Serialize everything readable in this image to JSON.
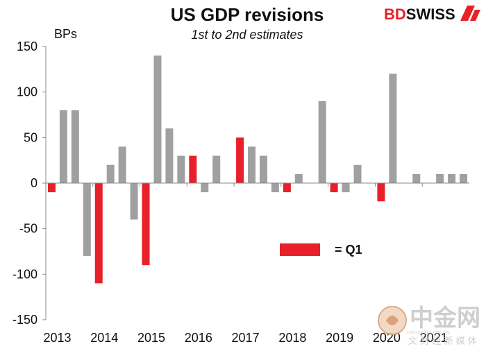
{
  "brand": {
    "part1": "BD",
    "part2": "SWISS",
    "color1": "#e8202a",
    "color2": "#111111"
  },
  "watermark": {
    "main": "中金网",
    "sub": "文 财 经 新 媒 体",
    "small": "CNGOLD.COM.CN"
  },
  "chart_data": {
    "type": "bar",
    "title": "US GDP revisions",
    "subtitle": "1st to 2nd estimates",
    "ylabel": "BPs",
    "ylim": [
      -150,
      150
    ],
    "yticks": [
      150,
      100,
      50,
      0,
      -50,
      -100,
      -150
    ],
    "xtick_labels": [
      "2013",
      "2014",
      "2015",
      "2016",
      "2017",
      "2018",
      "2019",
      "2020",
      "2021"
    ],
    "colors": {
      "q1": "#e8202a",
      "other": "#a0a0a0"
    },
    "legend": {
      "label": "= Q1",
      "position": "center-right"
    },
    "bars": [
      {
        "period": "2013 Q1",
        "value": -10,
        "q1": true
      },
      {
        "period": "2013 Q2",
        "value": 80,
        "q1": false
      },
      {
        "period": "2013 Q3",
        "value": 80,
        "q1": false
      },
      {
        "period": "2013 Q4",
        "value": -80,
        "q1": false
      },
      {
        "period": "2014 Q1",
        "value": -110,
        "q1": true
      },
      {
        "period": "2014 Q2",
        "value": 20,
        "q1": false
      },
      {
        "period": "2014 Q3",
        "value": 40,
        "q1": false
      },
      {
        "period": "2014 Q4",
        "value": -40,
        "q1": false
      },
      {
        "period": "2015 Q1",
        "value": -90,
        "q1": true
      },
      {
        "period": "2015 Q2",
        "value": 140,
        "q1": false
      },
      {
        "period": "2015 Q3",
        "value": 60,
        "q1": false
      },
      {
        "period": "2015 Q4",
        "value": 30,
        "q1": false
      },
      {
        "period": "2016 Q1",
        "value": 30,
        "q1": true
      },
      {
        "period": "2016 Q2",
        "value": -10,
        "q1": false
      },
      {
        "period": "2016 Q3",
        "value": 30,
        "q1": false
      },
      {
        "period": "2016 Q4",
        "value": 0,
        "q1": false
      },
      {
        "period": "2017 Q1",
        "value": 50,
        "q1": true
      },
      {
        "period": "2017 Q2",
        "value": 40,
        "q1": false
      },
      {
        "period": "2017 Q3",
        "value": 30,
        "q1": false
      },
      {
        "period": "2017 Q4",
        "value": -10,
        "q1": false
      },
      {
        "period": "2018 Q1",
        "value": -10,
        "q1": true
      },
      {
        "period": "2018 Q2",
        "value": 10,
        "q1": false
      },
      {
        "period": "2018 Q3",
        "value": 0,
        "q1": false
      },
      {
        "period": "2018 Q4",
        "value": 90,
        "q1": false
      },
      {
        "period": "2019 Q1",
        "value": -10,
        "q1": true
      },
      {
        "period": "2019 Q2",
        "value": -10,
        "q1": false
      },
      {
        "period": "2019 Q3",
        "value": 20,
        "q1": false
      },
      {
        "period": "2019 Q4",
        "value": 0,
        "q1": false
      },
      {
        "period": "2020 Q1",
        "value": -20,
        "q1": true
      },
      {
        "period": "2020 Q2",
        "value": 120,
        "q1": false
      },
      {
        "period": "2020 Q3",
        "value": 0,
        "q1": false
      },
      {
        "period": "2020 Q4",
        "value": 10,
        "q1": false
      },
      {
        "period": "2021 Q1",
        "value": 0,
        "q1": true
      },
      {
        "period": "2021 Q2",
        "value": 10,
        "q1": false
      },
      {
        "period": "2021 Q3",
        "value": 10,
        "q1": false
      },
      {
        "period": "2021 Q4",
        "value": 10,
        "q1": false
      }
    ]
  }
}
